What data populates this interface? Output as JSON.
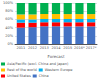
{
  "chart_data": {
    "type": "bar",
    "stacked": true,
    "xlabel": "Forecast",
    "categories": [
      "2011",
      "2012",
      "2013",
      "2014",
      "2015",
      "2016*",
      "2017*"
    ],
    "series": [
      {
        "name": "China",
        "color": "#4472c4",
        "values": [
          0.4,
          0.41,
          0.43,
          0.43,
          0.43,
          0.43,
          0.43
        ]
      },
      {
        "name": "United States",
        "color": "#ff0000",
        "values": [
          0.12,
          0.11,
          0.1,
          0.1,
          0.1,
          0.1,
          0.1
        ]
      },
      {
        "name": "Western Europe",
        "color": "#00b0f0",
        "values": [
          0.08,
          0.08,
          0.08,
          0.08,
          0.08,
          0.08,
          0.08
        ]
      },
      {
        "name": "Rest of the world",
        "color": "#ffc000",
        "values": [
          0.12,
          0.12,
          0.12,
          0.12,
          0.12,
          0.12,
          0.12
        ]
      },
      {
        "name": "Asia/Pacific (excl. China and Japan)",
        "color": "#00b050",
        "values": [
          0.28,
          0.28,
          0.27,
          0.27,
          0.27,
          0.27,
          0.27
        ]
      }
    ],
    "ylim": [
      0,
      1
    ],
    "yticks": [
      {
        "value": 0,
        "label": "0%"
      },
      {
        "value": 0.2,
        "label": "20%"
      },
      {
        "value": 0.4,
        "label": "40%"
      },
      {
        "value": 0.6,
        "label": "60%"
      },
      {
        "value": 0.8,
        "label": "80%"
      },
      {
        "value": 1.0,
        "label": "100%"
      }
    ],
    "grid": true,
    "legend": "bottom"
  }
}
